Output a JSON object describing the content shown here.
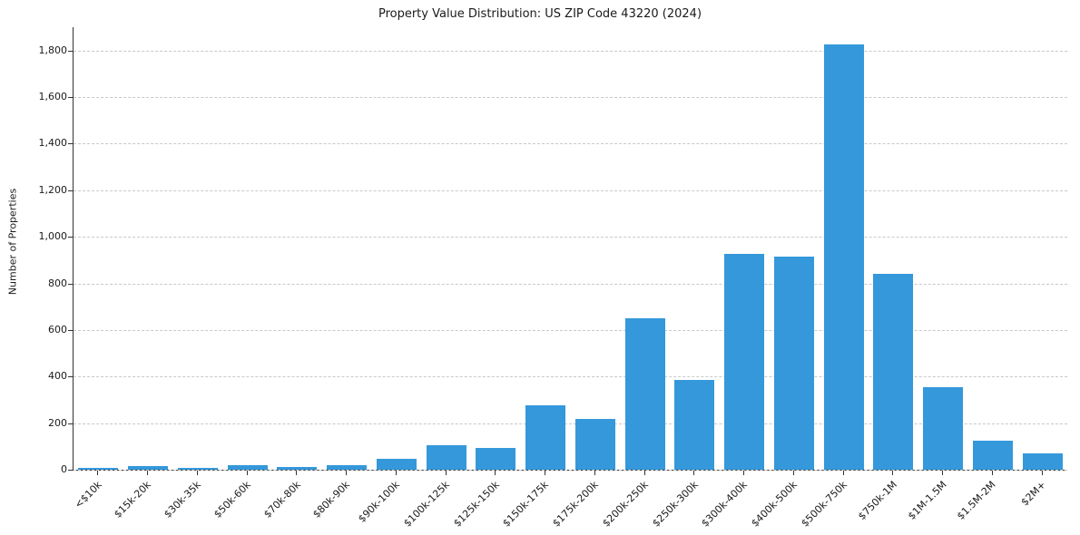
{
  "chart_data": {
    "type": "bar",
    "title": "Property Value Distribution: US ZIP Code 43220 (2024)",
    "ylabel": "Number of Properties",
    "xlabel": "",
    "categories": [
      "<$10k",
      "$15k-20k",
      "$30k-35k",
      "$50k-60k",
      "$70k-80k",
      "$80k-90k",
      "$90k-100k",
      "$100k-125k",
      "$125k-150k",
      "$150k-175k",
      "$175k-200k",
      "$200k-250k",
      "$250k-300k",
      "$300k-400k",
      "$400k-500k",
      "$500k-750k",
      "$750k-1M",
      "$1M-1.5M",
      "$1.5M-2M",
      "$2M+"
    ],
    "values": [
      8,
      15,
      8,
      20,
      12,
      20,
      45,
      105,
      95,
      275,
      220,
      650,
      385,
      925,
      915,
      1825,
      840,
      355,
      125,
      70
    ],
    "ylim": [
      0,
      1900
    ],
    "ytick_step": 200,
    "ytick_max": 1800,
    "bar_color": "#3498db",
    "grid": true,
    "grid_style": "dashed",
    "legend": "none"
  }
}
